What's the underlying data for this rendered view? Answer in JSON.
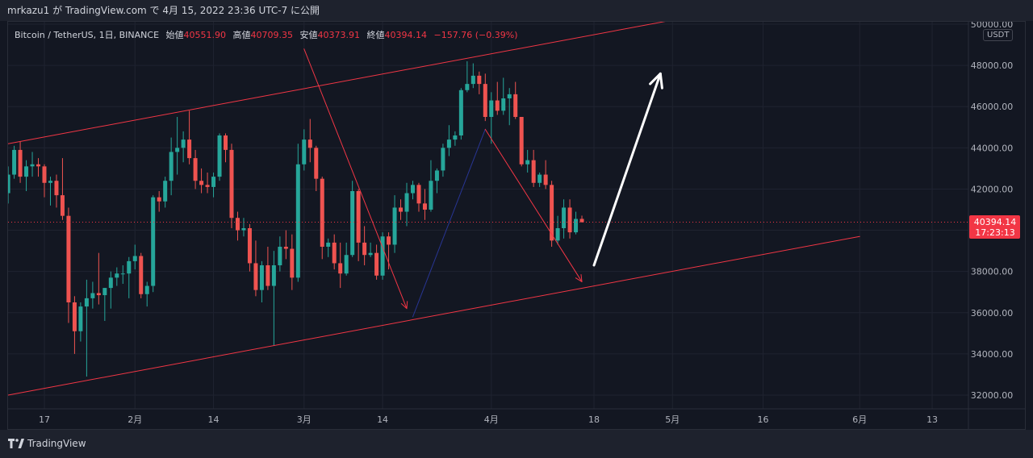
{
  "header": {
    "title": "mrkazu1 が TradingView.com で 4月 15, 2022 23:36 UTC-7 に公開"
  },
  "legend": {
    "symbol": "Bitcoin / TetherUS, 1日, BINANCE",
    "open_label": "始値",
    "open": "40551.90",
    "high_label": "高値",
    "high": "40709.35",
    "low_label": "安値",
    "low": "40373.91",
    "close_label": "終値",
    "close": "40394.14",
    "change": "−157.76 (−0.39%)"
  },
  "currency": "USDT",
  "price_tag": {
    "price": "40394.14",
    "countdown": "17:23:13"
  },
  "brand": "TradingView",
  "colors": {
    "up": "#26a69a",
    "down": "#ef5350",
    "channel": "#f23645",
    "bg": "#131722",
    "grid": "#1f2330",
    "arrow_white": "#ffffff",
    "arrow_blue": "#283593"
  },
  "chart_data": {
    "type": "candlestick",
    "title": "Bitcoin / TetherUS, 1日, BINANCE",
    "ylim": [
      31500,
      50500
    ],
    "y_ticks": [
      32000,
      34000,
      36000,
      38000,
      40000,
      42000,
      44000,
      46000,
      48000,
      50000
    ],
    "y_tick_labels": [
      "32000.00",
      "34000.00",
      "36000.00",
      "38000.00",
      "40000.00",
      "42000.00",
      "44000.00",
      "46000.00",
      "48000.00",
      "50000.00"
    ],
    "x_ticks": [
      {
        "label": "17",
        "date": "2022-01-17"
      },
      {
        "label": "2月",
        "date": "2022-02-01"
      },
      {
        "label": "14",
        "date": "2022-02-14"
      },
      {
        "label": "3月",
        "date": "2022-03-01"
      },
      {
        "label": "14",
        "date": "2022-03-14"
      },
      {
        "label": "4月",
        "date": "2022-04-01"
      },
      {
        "label": "18",
        "date": "2022-04-18"
      },
      {
        "label": "5月",
        "date": "2022-05-01"
      },
      {
        "label": "16",
        "date": "2022-05-16"
      },
      {
        "label": "6月",
        "date": "2022-06-01"
      },
      {
        "label": "13",
        "date": "2022-06-13"
      }
    ],
    "last_price": 40394.14,
    "candles": [
      {
        "date": "2022-01-11",
        "o": 41800,
        "h": 43100,
        "l": 41300,
        "c": 42700
      },
      {
        "date": "2022-01-12",
        "o": 42700,
        "h": 44100,
        "l": 42500,
        "c": 43900
      },
      {
        "date": "2022-01-13",
        "o": 43900,
        "h": 44300,
        "l": 42300,
        "c": 42600
      },
      {
        "date": "2022-01-14",
        "o": 42600,
        "h": 43400,
        "l": 41900,
        "c": 43100
      },
      {
        "date": "2022-01-15",
        "o": 43100,
        "h": 43800,
        "l": 42600,
        "c": 43200
      },
      {
        "date": "2022-01-16",
        "o": 43200,
        "h": 43500,
        "l": 42600,
        "c": 43100
      },
      {
        "date": "2022-01-17",
        "o": 43100,
        "h": 43200,
        "l": 41600,
        "c": 42300
      },
      {
        "date": "2022-01-18",
        "o": 42300,
        "h": 42600,
        "l": 41200,
        "c": 42400
      },
      {
        "date": "2022-01-19",
        "o": 42400,
        "h": 42700,
        "l": 41100,
        "c": 41700
      },
      {
        "date": "2022-01-20",
        "o": 41700,
        "h": 43500,
        "l": 40500,
        "c": 40700
      },
      {
        "date": "2022-01-21",
        "o": 40700,
        "h": 41100,
        "l": 35500,
        "c": 36500
      },
      {
        "date": "2022-01-22",
        "o": 36500,
        "h": 36800,
        "l": 34000,
        "c": 35100
      },
      {
        "date": "2022-01-23",
        "o": 35100,
        "h": 36500,
        "l": 34600,
        "c": 36300
      },
      {
        "date": "2022-01-24",
        "o": 36300,
        "h": 37600,
        "l": 32900,
        "c": 36700
      },
      {
        "date": "2022-01-25",
        "o": 36700,
        "h": 37500,
        "l": 36200,
        "c": 36950
      },
      {
        "date": "2022-01-26",
        "o": 36950,
        "h": 38900,
        "l": 36400,
        "c": 36850
      },
      {
        "date": "2022-01-27",
        "o": 36850,
        "h": 37200,
        "l": 35600,
        "c": 37200
      },
      {
        "date": "2022-01-28",
        "o": 37200,
        "h": 38000,
        "l": 36200,
        "c": 37700
      },
      {
        "date": "2022-01-29",
        "o": 37700,
        "h": 38200,
        "l": 37300,
        "c": 37900
      },
      {
        "date": "2022-01-30",
        "o": 37900,
        "h": 38300,
        "l": 37400,
        "c": 37900
      },
      {
        "date": "2022-01-31",
        "o": 37900,
        "h": 38700,
        "l": 36700,
        "c": 38500
      },
      {
        "date": "2022-02-01",
        "o": 38500,
        "h": 39300,
        "l": 38100,
        "c": 38750
      },
      {
        "date": "2022-02-02",
        "o": 38750,
        "h": 38900,
        "l": 36700,
        "c": 36900
      },
      {
        "date": "2022-02-03",
        "o": 36900,
        "h": 37500,
        "l": 36300,
        "c": 37300
      },
      {
        "date": "2022-02-04",
        "o": 37300,
        "h": 41700,
        "l": 37000,
        "c": 41600
      },
      {
        "date": "2022-02-05",
        "o": 41600,
        "h": 41900,
        "l": 40900,
        "c": 41400
      },
      {
        "date": "2022-02-06",
        "o": 41400,
        "h": 42600,
        "l": 41100,
        "c": 42400
      },
      {
        "date": "2022-02-07",
        "o": 42400,
        "h": 44500,
        "l": 41700,
        "c": 43800
      },
      {
        "date": "2022-02-08",
        "o": 43800,
        "h": 45500,
        "l": 42700,
        "c": 44000
      },
      {
        "date": "2022-02-09",
        "o": 44000,
        "h": 44800,
        "l": 43300,
        "c": 44400
      },
      {
        "date": "2022-02-10",
        "o": 44400,
        "h": 45800,
        "l": 43200,
        "c": 43500
      },
      {
        "date": "2022-02-11",
        "o": 43500,
        "h": 43900,
        "l": 42000,
        "c": 42400
      },
      {
        "date": "2022-02-12",
        "o": 42400,
        "h": 43000,
        "l": 41800,
        "c": 42200
      },
      {
        "date": "2022-02-13",
        "o": 42200,
        "h": 42800,
        "l": 41800,
        "c": 42100
      },
      {
        "date": "2022-02-14",
        "o": 42100,
        "h": 42800,
        "l": 41600,
        "c": 42600
      },
      {
        "date": "2022-02-15",
        "o": 42600,
        "h": 44700,
        "l": 42400,
        "c": 44600
      },
      {
        "date": "2022-02-16",
        "o": 44600,
        "h": 44700,
        "l": 43300,
        "c": 43900
      },
      {
        "date": "2022-02-17",
        "o": 43900,
        "h": 44200,
        "l": 40100,
        "c": 40600
      },
      {
        "date": "2022-02-18",
        "o": 40600,
        "h": 40900,
        "l": 39500,
        "c": 40000
      },
      {
        "date": "2022-02-19",
        "o": 40000,
        "h": 40600,
        "l": 39700,
        "c": 40100
      },
      {
        "date": "2022-02-20",
        "o": 40100,
        "h": 40300,
        "l": 38000,
        "c": 38400
      },
      {
        "date": "2022-02-21",
        "o": 38400,
        "h": 39500,
        "l": 36800,
        "c": 37100
      },
      {
        "date": "2022-02-22",
        "o": 37100,
        "h": 38500,
        "l": 36500,
        "c": 38300
      },
      {
        "date": "2022-02-23",
        "o": 38300,
        "h": 39200,
        "l": 37100,
        "c": 37300
      },
      {
        "date": "2022-02-24",
        "o": 37300,
        "h": 39000,
        "l": 34400,
        "c": 38300
      },
      {
        "date": "2022-02-25",
        "o": 38300,
        "h": 39700,
        "l": 38000,
        "c": 39200
      },
      {
        "date": "2022-02-26",
        "o": 39200,
        "h": 40000,
        "l": 38600,
        "c": 39100
      },
      {
        "date": "2022-02-27",
        "o": 39100,
        "h": 39800,
        "l": 37100,
        "c": 37700
      },
      {
        "date": "2022-02-28",
        "o": 37700,
        "h": 44200,
        "l": 37500,
        "c": 43200
      },
      {
        "date": "2022-03-01",
        "o": 43200,
        "h": 44900,
        "l": 42900,
        "c": 44400
      },
      {
        "date": "2022-03-02",
        "o": 44400,
        "h": 45400,
        "l": 43300,
        "c": 44000
      },
      {
        "date": "2022-03-03",
        "o": 44000,
        "h": 44100,
        "l": 41900,
        "c": 42500
      },
      {
        "date": "2022-03-04",
        "o": 42500,
        "h": 42600,
        "l": 38600,
        "c": 39200
      },
      {
        "date": "2022-03-05",
        "o": 39200,
        "h": 39600,
        "l": 38700,
        "c": 39400
      },
      {
        "date": "2022-03-06",
        "o": 39400,
        "h": 39800,
        "l": 38100,
        "c": 38400
      },
      {
        "date": "2022-03-07",
        "o": 38400,
        "h": 39400,
        "l": 37200,
        "c": 37900
      },
      {
        "date": "2022-03-08",
        "o": 37900,
        "h": 39400,
        "l": 37800,
        "c": 38800
      },
      {
        "date": "2022-03-09",
        "o": 38800,
        "h": 42400,
        "l": 38700,
        "c": 41900
      },
      {
        "date": "2022-03-10",
        "o": 41900,
        "h": 42000,
        "l": 38500,
        "c": 39400
      },
      {
        "date": "2022-03-11",
        "o": 39400,
        "h": 40200,
        "l": 38300,
        "c": 38800
      },
      {
        "date": "2022-03-12",
        "o": 38800,
        "h": 39400,
        "l": 38700,
        "c": 38900
      },
      {
        "date": "2022-03-13",
        "o": 38900,
        "h": 39300,
        "l": 37600,
        "c": 37800
      },
      {
        "date": "2022-03-14",
        "o": 37800,
        "h": 39900,
        "l": 37600,
        "c": 39700
      },
      {
        "date": "2022-03-15",
        "o": 39700,
        "h": 39900,
        "l": 38100,
        "c": 39300
      },
      {
        "date": "2022-03-16",
        "o": 39300,
        "h": 41700,
        "l": 38900,
        "c": 41100
      },
      {
        "date": "2022-03-17",
        "o": 41100,
        "h": 41500,
        "l": 40500,
        "c": 40900
      },
      {
        "date": "2022-03-18",
        "o": 40900,
        "h": 42300,
        "l": 40200,
        "c": 41800
      },
      {
        "date": "2022-03-19",
        "o": 41800,
        "h": 42400,
        "l": 41500,
        "c": 42200
      },
      {
        "date": "2022-03-20",
        "o": 42200,
        "h": 42300,
        "l": 40900,
        "c": 41300
      },
      {
        "date": "2022-03-21",
        "o": 41300,
        "h": 42000,
        "l": 40500,
        "c": 41000
      },
      {
        "date": "2022-03-22",
        "o": 41000,
        "h": 43400,
        "l": 40900,
        "c": 42400
      },
      {
        "date": "2022-03-23",
        "o": 42400,
        "h": 43000,
        "l": 41800,
        "c": 42900
      },
      {
        "date": "2022-03-24",
        "o": 42900,
        "h": 44200,
        "l": 42600,
        "c": 44000
      },
      {
        "date": "2022-03-25",
        "o": 44000,
        "h": 45100,
        "l": 43600,
        "c": 44400
      },
      {
        "date": "2022-03-26",
        "o": 44400,
        "h": 44800,
        "l": 44100,
        "c": 44600
      },
      {
        "date": "2022-03-27",
        "o": 44600,
        "h": 46900,
        "l": 44400,
        "c": 46800
      },
      {
        "date": "2022-03-28",
        "o": 46800,
        "h": 48200,
        "l": 46700,
        "c": 47100
      },
      {
        "date": "2022-03-29",
        "o": 47100,
        "h": 48100,
        "l": 46900,
        "c": 47500
      },
      {
        "date": "2022-03-30",
        "o": 47500,
        "h": 47700,
        "l": 46600,
        "c": 47100
      },
      {
        "date": "2022-03-31",
        "o": 47100,
        "h": 47600,
        "l": 45300,
        "c": 45500
      },
      {
        "date": "2022-04-01",
        "o": 45500,
        "h": 46700,
        "l": 44200,
        "c": 46300
      },
      {
        "date": "2022-04-02",
        "o": 46300,
        "h": 47200,
        "l": 45600,
        "c": 45800
      },
      {
        "date": "2022-04-03",
        "o": 45800,
        "h": 47400,
        "l": 45600,
        "c": 46400
      },
      {
        "date": "2022-04-04",
        "o": 46400,
        "h": 46900,
        "l": 45100,
        "c": 46600
      },
      {
        "date": "2022-04-05",
        "o": 46600,
        "h": 47200,
        "l": 45400,
        "c": 45500
      },
      {
        "date": "2022-04-06",
        "o": 45500,
        "h": 45500,
        "l": 43100,
        "c": 43200
      },
      {
        "date": "2022-04-07",
        "o": 43200,
        "h": 43900,
        "l": 42800,
        "c": 43400
      },
      {
        "date": "2022-04-08",
        "o": 43400,
        "h": 43900,
        "l": 42100,
        "c": 42300
      },
      {
        "date": "2022-04-09",
        "o": 42300,
        "h": 42800,
        "l": 42100,
        "c": 42700
      },
      {
        "date": "2022-04-10",
        "o": 42700,
        "h": 43400,
        "l": 42000,
        "c": 42200
      },
      {
        "date": "2022-04-11",
        "o": 42200,
        "h": 42400,
        "l": 39200,
        "c": 39500
      },
      {
        "date": "2022-04-12",
        "o": 39500,
        "h": 40700,
        "l": 39300,
        "c": 40100
      },
      {
        "date": "2022-04-13",
        "o": 40100,
        "h": 41500,
        "l": 39600,
        "c": 41100
      },
      {
        "date": "2022-04-14",
        "o": 41100,
        "h": 41500,
        "l": 39600,
        "c": 39900
      },
      {
        "date": "2022-04-15",
        "o": 39900,
        "h": 40900,
        "l": 39800,
        "c": 40550
      },
      {
        "date": "2022-04-16",
        "o": 40551.9,
        "h": 40709.35,
        "l": 40373.91,
        "c": 40394.14
      }
    ],
    "drawings": [
      {
        "kind": "channel-upper",
        "from": {
          "date": "2022-01-11",
          "price": 44200
        },
        "to": {
          "date": "2022-05-01",
          "price": 50200
        }
      },
      {
        "kind": "channel-lower",
        "from": {
          "date": "2022-01-11",
          "price": 32000
        },
        "to": {
          "date": "2022-06-01",
          "price": 39700
        }
      },
      {
        "kind": "arrow-red",
        "from": {
          "date": "2022-03-01",
          "price": 48800
        },
        "to": {
          "date": "2022-03-18",
          "price": 36200
        }
      },
      {
        "kind": "line-blue",
        "from": {
          "date": "2022-03-19",
          "price": 35800
        },
        "to": {
          "date": "2022-03-31",
          "price": 44900
        }
      },
      {
        "kind": "arrow-red",
        "from": {
          "date": "2022-03-31",
          "price": 44900
        },
        "to": {
          "date": "2022-04-16",
          "price": 37500
        }
      },
      {
        "kind": "arrow-white",
        "from": {
          "date": "2022-04-18",
          "price": 38300
        },
        "to": {
          "date": "2022-04-29",
          "price": 47600
        }
      }
    ]
  }
}
